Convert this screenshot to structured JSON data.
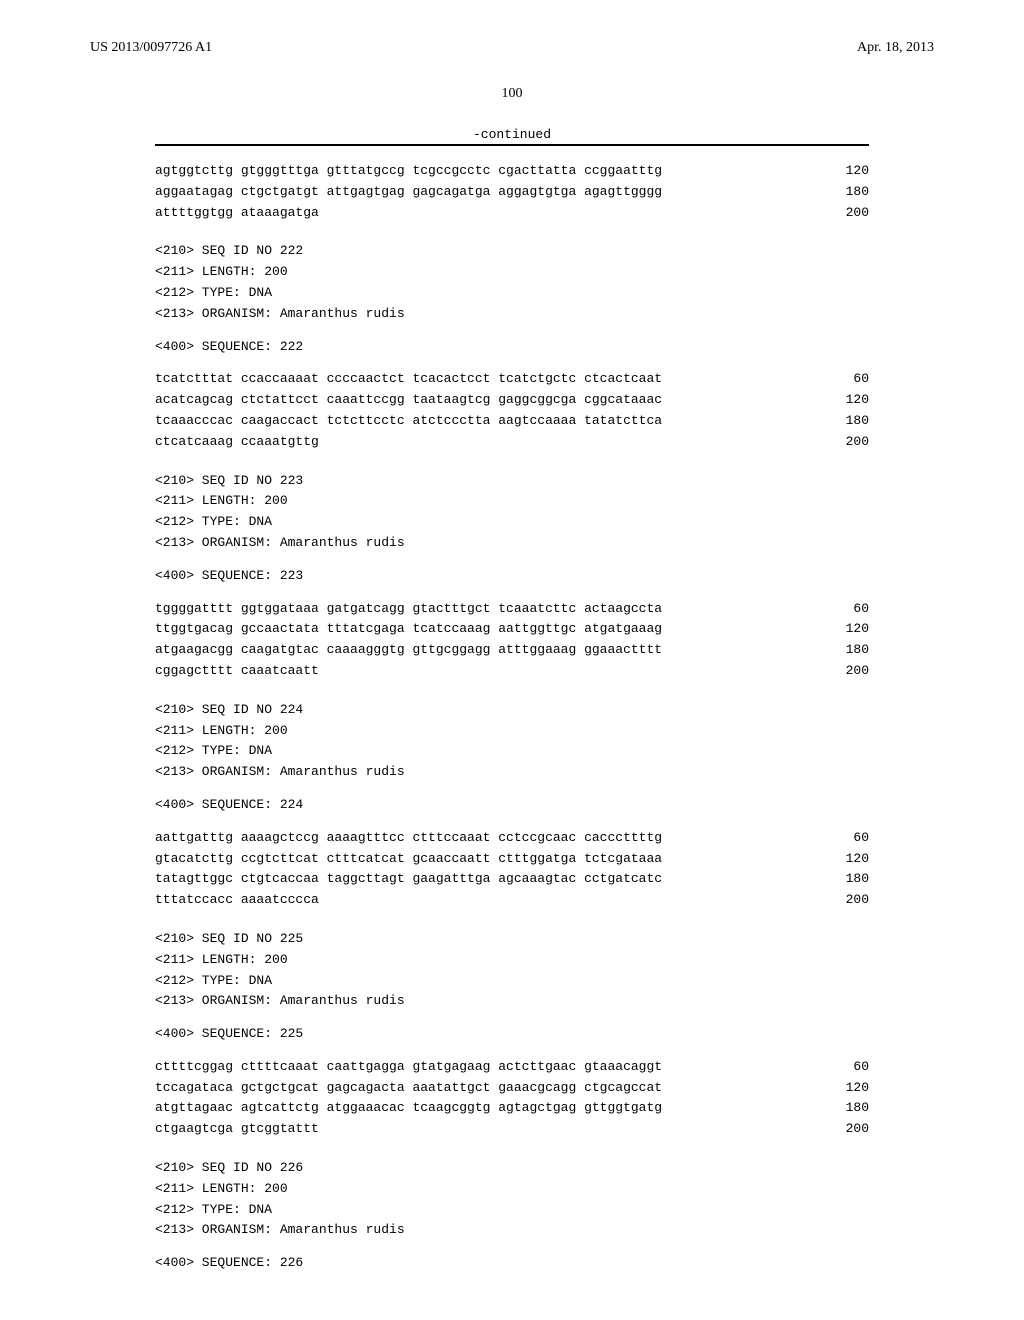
{
  "header": {
    "doc_number": "US 2013/0097726 A1",
    "date": "Apr. 18, 2013"
  },
  "page_number": "100",
  "continued_label": "-continued",
  "blocks": [
    {
      "type": "seq",
      "lines": [
        {
          "text": "agtggtcttg gtgggtttga gtttatgccg tcgccgcctc cgacttatta ccggaatttg",
          "num": "120"
        },
        {
          "text": "aggaatagag ctgctgatgt attgagtgag gagcagatga aggagtgtga agagttgggg",
          "num": "180"
        },
        {
          "text": "attttggtgg ataaagatga",
          "num": "200"
        }
      ]
    },
    {
      "type": "meta",
      "lines": [
        "<210> SEQ ID NO 222",
        "<211> LENGTH: 200",
        "<212> TYPE: DNA",
        "<213> ORGANISM: Amaranthus rudis"
      ]
    },
    {
      "type": "meta",
      "lines": [
        "<400> SEQUENCE: 222"
      ]
    },
    {
      "type": "seq",
      "lines": [
        {
          "text": "tcatctttat ccaccaaaat ccccaactct tcacactcct tcatctgctc ctcactcaat",
          "num": "60"
        },
        {
          "text": "acatcagcag ctctattcct caaattccgg taataagtcg gaggcggcga cggcataaac",
          "num": "120"
        },
        {
          "text": "tcaaacccac caagaccact tctcttcctc atctccctta aagtccaaaa tatatcttca",
          "num": "180"
        },
        {
          "text": "ctcatcaaag ccaaatgttg",
          "num": "200"
        }
      ]
    },
    {
      "type": "meta",
      "lines": [
        "<210> SEQ ID NO 223",
        "<211> LENGTH: 200",
        "<212> TYPE: DNA",
        "<213> ORGANISM: Amaranthus rudis"
      ]
    },
    {
      "type": "meta",
      "lines": [
        "<400> SEQUENCE: 223"
      ]
    },
    {
      "type": "seq",
      "lines": [
        {
          "text": "tggggatttt ggtggataaa gatgatcagg gtactttgct tcaaatcttc actaagccta",
          "num": "60"
        },
        {
          "text": "ttggtgacag gccaactata tttatcgaga tcatccaaag aattggttgc atgatgaaag",
          "num": "120"
        },
        {
          "text": "atgaagacgg caagatgtac caaaagggtg gttgcggagg atttggaaag ggaaactttt",
          "num": "180"
        },
        {
          "text": "cggagctttt caaatcaatt",
          "num": "200"
        }
      ]
    },
    {
      "type": "meta",
      "lines": [
        "<210> SEQ ID NO 224",
        "<211> LENGTH: 200",
        "<212> TYPE: DNA",
        "<213> ORGANISM: Amaranthus rudis"
      ]
    },
    {
      "type": "meta",
      "lines": [
        "<400> SEQUENCE: 224"
      ]
    },
    {
      "type": "seq",
      "lines": [
        {
          "text": "aattgatttg aaaagctccg aaaagtttcc ctttccaaat cctccgcaac cacccttttg",
          "num": "60"
        },
        {
          "text": "gtacatcttg ccgtcttcat ctttcatcat gcaaccaatt ctttggatga tctcgataaa",
          "num": "120"
        },
        {
          "text": "tatagttggc ctgtcaccaa taggcttagt gaagatttga agcaaagtac cctgatcatc",
          "num": "180"
        },
        {
          "text": "tttatccacc aaaatcccca",
          "num": "200"
        }
      ]
    },
    {
      "type": "meta",
      "lines": [
        "<210> SEQ ID NO 225",
        "<211> LENGTH: 200",
        "<212> TYPE: DNA",
        "<213> ORGANISM: Amaranthus rudis"
      ]
    },
    {
      "type": "meta",
      "lines": [
        "<400> SEQUENCE: 225"
      ]
    },
    {
      "type": "seq",
      "lines": [
        {
          "text": "cttttcggag cttttcaaat caattgagga gtatgagaag actcttgaac gtaaacaggt",
          "num": "60"
        },
        {
          "text": "tccagataca gctgctgcat gagcagacta aaatattgct gaaacgcagg ctgcagccat",
          "num": "120"
        },
        {
          "text": "atgttagaac agtcattctg atggaaacac tcaagcggtg agtagctgag gttggtgatg",
          "num": "180"
        },
        {
          "text": "ctgaagtcga gtcggtattt",
          "num": "200"
        }
      ]
    },
    {
      "type": "meta",
      "lines": [
        "<210> SEQ ID NO 226",
        "<211> LENGTH: 200",
        "<212> TYPE: DNA",
        "<213> ORGANISM: Amaranthus rudis"
      ]
    },
    {
      "type": "meta",
      "lines": [
        "<400> SEQUENCE: 226"
      ]
    }
  ]
}
